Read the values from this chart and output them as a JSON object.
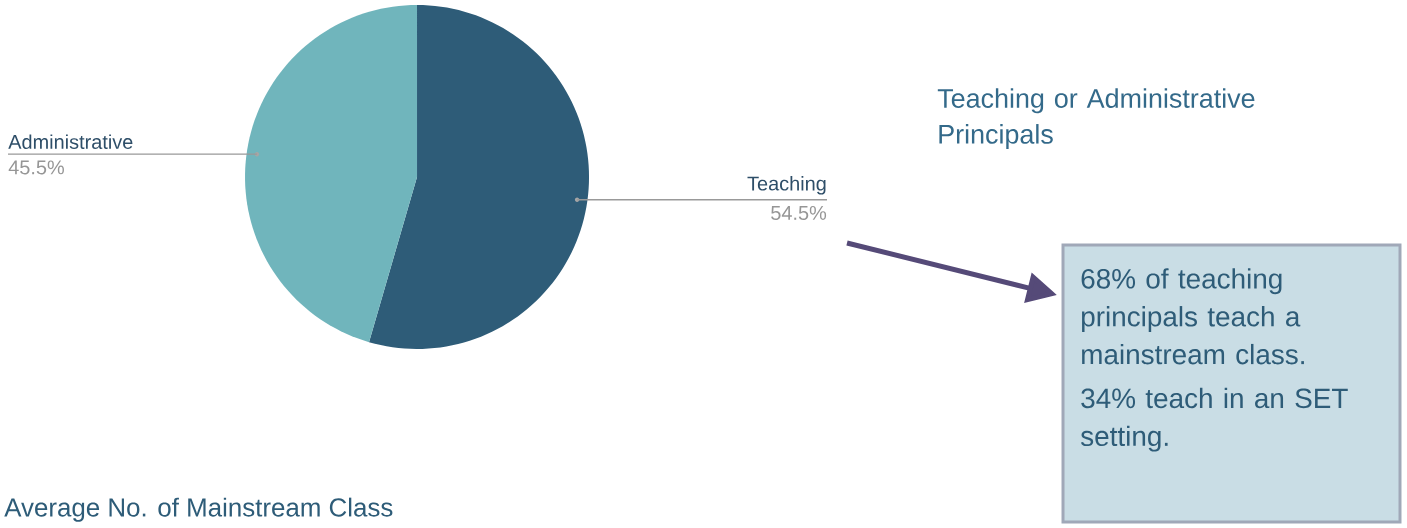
{
  "chart_data": {
    "type": "pie",
    "title": "Teaching or Administrative Principals",
    "categories": [
      "Teaching",
      "Administrative"
    ],
    "values": [
      54.5,
      45.5
    ],
    "colors": [
      "#2e5c78",
      "#70b5bc"
    ],
    "value_labels": [
      "54.5%",
      "45.5%"
    ],
    "annotations": [
      "68% of teaching principals teach a mainstream class.",
      "34% teach in an SET setting.",
      "Average No. of Mainstream Class"
    ]
  }
}
